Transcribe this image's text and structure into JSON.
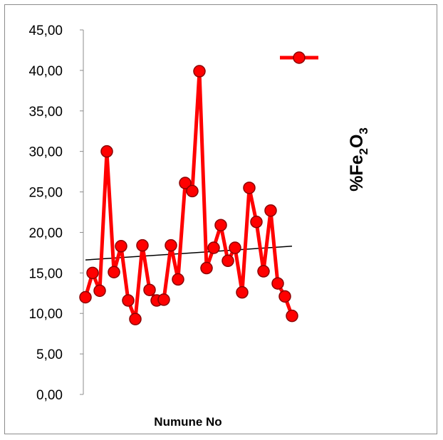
{
  "chart_data": {
    "type": "line",
    "title": "",
    "xlabel": "Numune No",
    "ylabel": "",
    "ylim": [
      0,
      45
    ],
    "yticks": [
      "0,00",
      "5,00",
      "10,00",
      "15,00",
      "20,00",
      "25,00",
      "30,00",
      "35,00",
      "40,00",
      "45,00"
    ],
    "grid": false,
    "legend_position": "top-right",
    "series": [
      {
        "name": "%Fe2O3",
        "color": "#ff0000",
        "marker_fill": "#ff0000",
        "marker_edge": "#8b0000",
        "values": [
          12.0,
          15.0,
          12.8,
          30.0,
          15.1,
          18.3,
          11.6,
          9.3,
          18.4,
          12.9,
          11.6,
          11.7,
          18.4,
          14.2,
          26.1,
          25.1,
          39.9,
          15.6,
          18.1,
          20.9,
          16.5,
          18.1,
          12.6,
          25.5,
          21.3,
          15.2,
          22.7,
          13.7,
          12.1,
          9.7
        ]
      }
    ],
    "trendline": {
      "type": "linear",
      "color": "#000000",
      "start": 16.6,
      "end": 18.3
    },
    "series_label": {
      "main": "%Fe",
      "sub1": "2",
      "mid": "O",
      "sub2": "3"
    }
  }
}
